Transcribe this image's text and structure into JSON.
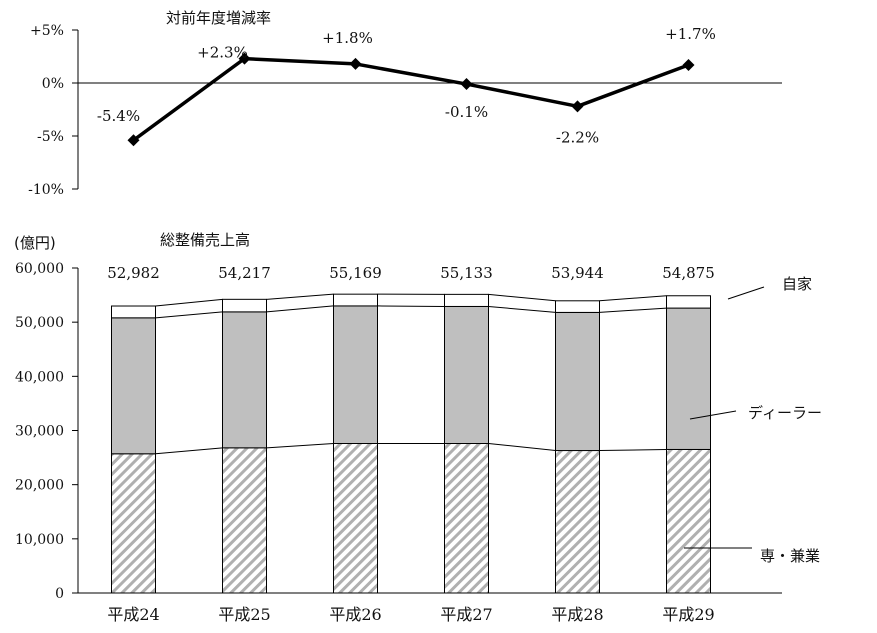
{
  "chart_data": [
    {
      "type": "line",
      "title": "対前年度増減率",
      "categories": [
        "平成24",
        "平成25",
        "平成26",
        "平成27",
        "平成28",
        "平成29"
      ],
      "values": [
        -5.4,
        2.3,
        1.8,
        -0.1,
        -2.2,
        1.7
      ],
      "value_labels": [
        "-5.4%",
        "+2.3%",
        "+1.8%",
        "-0.1%",
        "-2.2%",
        "+1.7%"
      ],
      "y_ticks": [
        "+5%",
        "0%",
        "-5%",
        "-10%"
      ],
      "ylim": [
        -10,
        5
      ],
      "color": "#000000"
    },
    {
      "type": "bar",
      "stacked": true,
      "title": "総整備売上高",
      "unit": "(億円)",
      "categories": [
        "平成24",
        "平成25",
        "平成26",
        "平成27",
        "平成28",
        "平成29"
      ],
      "series": [
        {
          "name": "専・兼業",
          "values": [
            25700,
            26800,
            27600,
            27600,
            26300,
            26500
          ],
          "pattern": "hatch",
          "color": "#aaaaaa"
        },
        {
          "name": "ディーラー",
          "values": [
            25100,
            25100,
            25400,
            25300,
            25500,
            26100
          ],
          "pattern": "solid",
          "color": "#bfbfbf"
        },
        {
          "name": "自家",
          "values": [
            2182,
            2317,
            2169,
            2233,
            2144,
            2275
          ],
          "pattern": "solid",
          "color": "#ffffff"
        }
      ],
      "totals": [
        "52,982",
        "54,217",
        "55,169",
        "55,133",
        "53,944",
        "54,875"
      ],
      "y_ticks": [
        "0",
        "10,000",
        "20,000",
        "30,000",
        "40,000",
        "50,000",
        "60,000"
      ],
      "ylim": [
        0,
        60000
      ]
    }
  ]
}
